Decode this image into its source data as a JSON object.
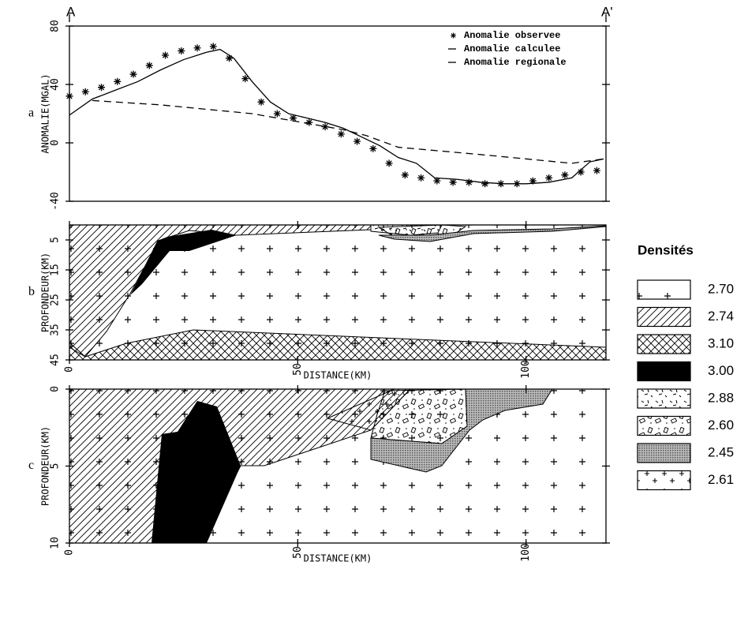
{
  "section_labels": {
    "left": "A",
    "right": "A'"
  },
  "chart_data": [
    {
      "type": "line",
      "panel_label": "a",
      "ylabel": "ANOMALIE(MGAL)",
      "xlim": [
        0,
        117.5
      ],
      "ylim": [
        -40,
        80
      ],
      "yticks": [
        -40,
        0,
        40,
        80
      ],
      "series": [
        {
          "name": "Anomalie observee",
          "style": "marker",
          "color": "#000000",
          "x": [
            0,
            3.5,
            7,
            10.5,
            14,
            17.5,
            21,
            24.5,
            28,
            31.5,
            35,
            38.5,
            42,
            45.5,
            49,
            52.5,
            56,
            59.5,
            63,
            66.5,
            70,
            73.5,
            77,
            80.5,
            84,
            87.5,
            91,
            94.5,
            98,
            101.5,
            105,
            108.5,
            112,
            115.5
          ],
          "values": [
            32,
            35,
            38,
            42,
            47,
            53,
            60,
            63,
            65,
            66,
            58,
            44,
            28,
            20,
            17,
            14,
            11,
            6,
            1,
            -4,
            -14,
            -22,
            -24,
            -26,
            -27,
            -27,
            -28,
            -28,
            -28,
            -26,
            -24,
            -22,
            -20,
            -19
          ]
        },
        {
          "name": "Anomalie calculee",
          "style": "solid",
          "color": "#000000",
          "x": [
            0,
            5,
            10,
            15,
            20,
            25,
            30,
            33,
            36,
            40,
            44,
            48,
            52,
            56,
            60,
            64,
            68,
            72,
            76,
            80,
            85,
            90,
            95,
            100,
            105,
            110,
            114,
            117
          ],
          "values": [
            19,
            30,
            36,
            42,
            50,
            57,
            62,
            64,
            58,
            42,
            28,
            20,
            17,
            14,
            10,
            4,
            -2,
            -10,
            -14,
            -24,
            -25,
            -27,
            -28,
            -28,
            -27,
            -24,
            -13,
            -11
          ]
        },
        {
          "name": "Anomalie regionale",
          "style": "dashed",
          "color": "#000000",
          "x": [
            5,
            20,
            40,
            60,
            65,
            72,
            90,
            110,
            117
          ],
          "values": [
            29,
            26,
            20,
            9,
            5,
            -3,
            -8,
            -14,
            -11
          ]
        }
      ]
    },
    {
      "type": "section",
      "panel_label": "b",
      "ylabel": "PROFONDEUR(KM)",
      "xlabel": "DISTANCE(KM)",
      "xlim": [
        0,
        117.5
      ],
      "xticks": [
        0,
        50,
        100
      ],
      "ylim": [
        0,
        45
      ],
      "yticks": [
        5,
        15,
        25,
        35,
        45
      ],
      "y_inverted": true
    },
    {
      "type": "section",
      "panel_label": "c",
      "ylabel": "PROFONDEUR(KM)",
      "xlabel": "DISTANCE(KM)",
      "xlim": [
        0,
        117.5
      ],
      "xticks": [
        0,
        50,
        100
      ],
      "ylim": [
        0,
        10
      ],
      "yticks": [
        0,
        5,
        10
      ],
      "y_inverted": true
    }
  ],
  "legend": {
    "title": "Densités",
    "items": [
      "2.70",
      "2.74",
      "3.10",
      "3.00",
      "2.88",
      "2.60",
      "2.45",
      "2.61"
    ]
  }
}
